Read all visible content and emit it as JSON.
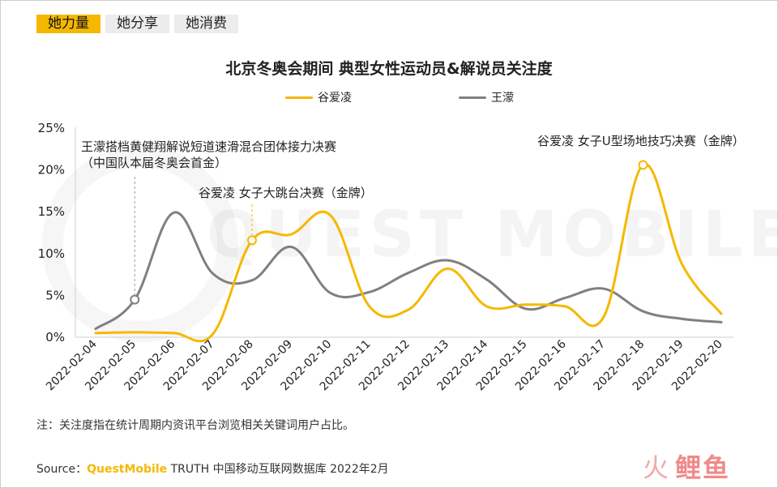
{
  "tabs": [
    {
      "label": "她力量",
      "active": true
    },
    {
      "label": "她分享",
      "active": false
    },
    {
      "label": "她消费",
      "active": false
    }
  ],
  "chart_data": {
    "type": "line",
    "title": "北京冬奥会期间 典型女性运动员&解说员关注度",
    "x": [
      "2022-02-04",
      "2022-02-05",
      "2022-02-06",
      "2022-02-07",
      "2022-02-08",
      "2022-02-09",
      "2022-02-10",
      "2022-02-11",
      "2022-02-12",
      "2022-02-13",
      "2022-02-14",
      "2022-02-15",
      "2022-02-16",
      "2022-02-17",
      "2022-02-18",
      "2022-02-19",
      "2022-02-20"
    ],
    "yticks": [
      "0%",
      "5%",
      "10%",
      "15%",
      "20%",
      "25%"
    ],
    "ylim": [
      0,
      25
    ],
    "series": [
      {
        "name": "谷爱凌",
        "color": "#f5b800",
        "values": [
          0.4,
          0.5,
          0.4,
          0.3,
          11.5,
          12.2,
          14.5,
          3.6,
          3.2,
          8.1,
          3.6,
          3.8,
          3.6,
          2.4,
          20.5,
          8.6,
          2.7
        ]
      },
      {
        "name": "王濛",
        "color": "#808080",
        "values": [
          0.9,
          4.4,
          14.8,
          7.5,
          6.7,
          10.7,
          5.2,
          5.3,
          7.6,
          9.1,
          6.8,
          3.3,
          4.6,
          5.7,
          3.0,
          2.1,
          1.7
        ]
      }
    ],
    "legend_position": "top",
    "grid": false,
    "annotations": [
      {
        "series": 1,
        "index": 1,
        "lines": [
          "王濛搭档黄健翔解说短道速滑混合团体接力决赛",
          "（中国队本届冬奥会首金）"
        ]
      },
      {
        "series": 0,
        "index": 4,
        "lines": [
          "谷爱凌 女子大跳台决赛（金牌）"
        ]
      },
      {
        "series": 0,
        "index": 14,
        "lines": [
          "谷爱凌 女子U型场地技巧决赛（金牌）"
        ]
      }
    ]
  },
  "watermark": "QUEST MOBILE",
  "note": "注：关注度指在统计周期内资讯平台浏览相关关键词用户占比。",
  "source": {
    "prefix": "Source：",
    "brand": "QuestMobile",
    "suffix": " TRUTH 中国移动互联网数据库 2022年2月"
  },
  "logo": {
    "fire": "火",
    "text": "鲤鱼"
  }
}
